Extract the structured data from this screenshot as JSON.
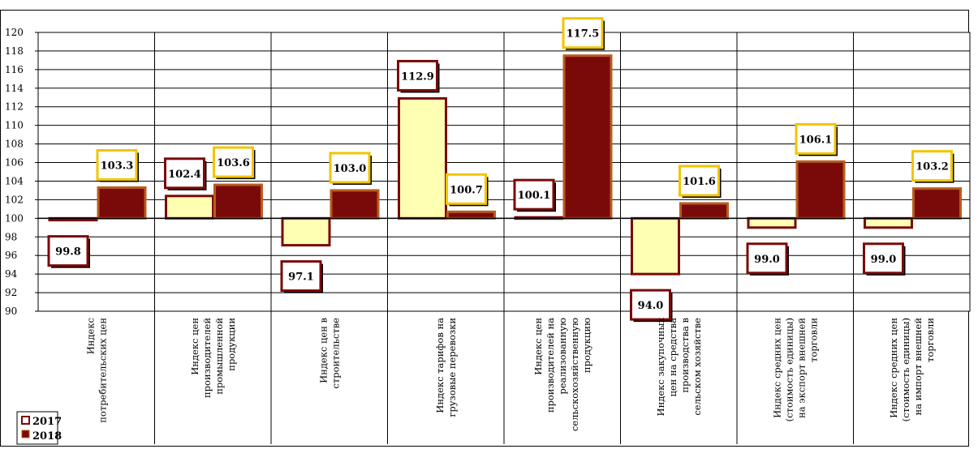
{
  "chart_data": {
    "type": "bar",
    "title": "",
    "xlabel": "",
    "ylabel": "",
    "ylim": [
      90,
      120
    ],
    "yticks": [
      90,
      92,
      94,
      96,
      98,
      100,
      102,
      104,
      106,
      108,
      110,
      112,
      114,
      116,
      118,
      120
    ],
    "baseline": 100,
    "grid": true,
    "legend_position": "bottom-left",
    "categories": [
      [
        "Индекс",
        "потребительских цен"
      ],
      [
        "Индекс цен",
        "производителей",
        "промышленной",
        "продукции"
      ],
      [
        "Индекс цен в",
        "строительстве"
      ],
      [
        "Индекс тарифов на",
        "грузовые перевозки"
      ],
      [
        "Индекс цен",
        "производителей на",
        "реализованную",
        "сельскохозяйственную",
        "продукцию"
      ],
      [
        "Индекс закупочных",
        "цен на средства",
        "производства в",
        "сельском хозяйстве"
      ],
      [
        "Индекс средних цен",
        "(стоимость единицы)",
        "на экспорт внешней",
        "торговли"
      ],
      [
        "Индекс средних цен",
        "(стоимость единицы)",
        "на импорт внешней",
        "торговли"
      ]
    ],
    "series": [
      {
        "name": "2017",
        "values": [
          99.8,
          102.4,
          97.1,
          112.9,
          100.1,
          94.0,
          99.0,
          99.0
        ],
        "labels": [
          "99.8",
          "102.4",
          "97.1",
          "112.9",
          "100.1",
          "94.0",
          "99.0",
          "99.0"
        ],
        "fill_color": "#ffffb3",
        "border_color": "#7a0a0a",
        "label_border_color": "#7a0a0a"
      },
      {
        "name": "2018",
        "values": [
          103.3,
          103.6,
          103.0,
          100.7,
          117.5,
          101.6,
          106.1,
          103.2
        ],
        "labels": [
          "103.3",
          "103.6",
          "103.0",
          "100.7",
          "117.5",
          "101.6",
          "106.1",
          "103.2"
        ],
        "fill_color": "#7a0a0a",
        "border_color": "#b85c1e",
        "label_border_color": "#f2c500"
      }
    ]
  }
}
